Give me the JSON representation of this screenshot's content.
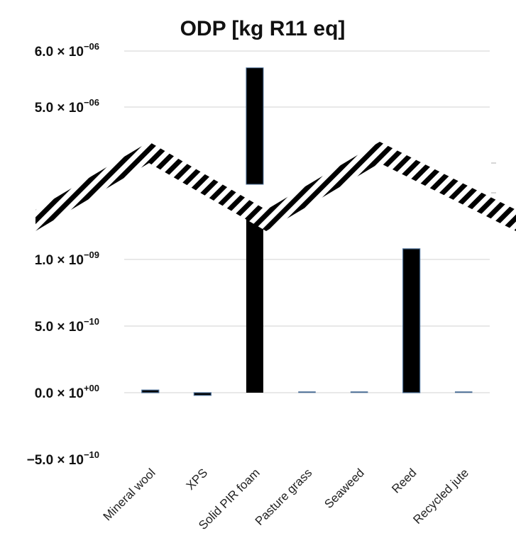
{
  "chart_data": {
    "type": "bar",
    "title": "ODP [kg R11 eq]",
    "xlabel": "",
    "ylabel": "",
    "categories": [
      "Mineral wool",
      "XPS",
      "Solid PIR foam",
      "Pasture grass",
      "Seaweed",
      "Reed",
      "Recycled jute"
    ],
    "values": [
      2e-11,
      -2e-11,
      5.7e-06,
      0,
      0,
      1.08e-09,
      0
    ],
    "axis_break": true,
    "upper_segment": {
      "ylim": [
        4.2e-06,
        6e-06
      ],
      "ticks": [
        {
          "value": 6e-06,
          "mantissa": "6.0 × 10",
          "exponent": "−06"
        },
        {
          "value": 5e-06,
          "mantissa": "5.0 × 10",
          "exponent": "−06"
        }
      ]
    },
    "lower_segment": {
      "ylim": [
        -5e-10,
        1.2e-09
      ],
      "ticks": [
        {
          "value": 1e-09,
          "mantissa": "1.0 × 10",
          "exponent": "−09"
        },
        {
          "value": 5e-10,
          "mantissa": "5.0 × 10",
          "exponent": "−10"
        },
        {
          "value": 0,
          "mantissa": "0.0 × 10",
          "exponent": "+00"
        },
        {
          "value": -5e-10,
          "mantissa": "−5.0 × 10",
          "exponent": "−10"
        }
      ]
    },
    "colors": {
      "bar": "#000000",
      "bar_edge": "#4a6e96",
      "grid": "#d9d9d9"
    }
  }
}
